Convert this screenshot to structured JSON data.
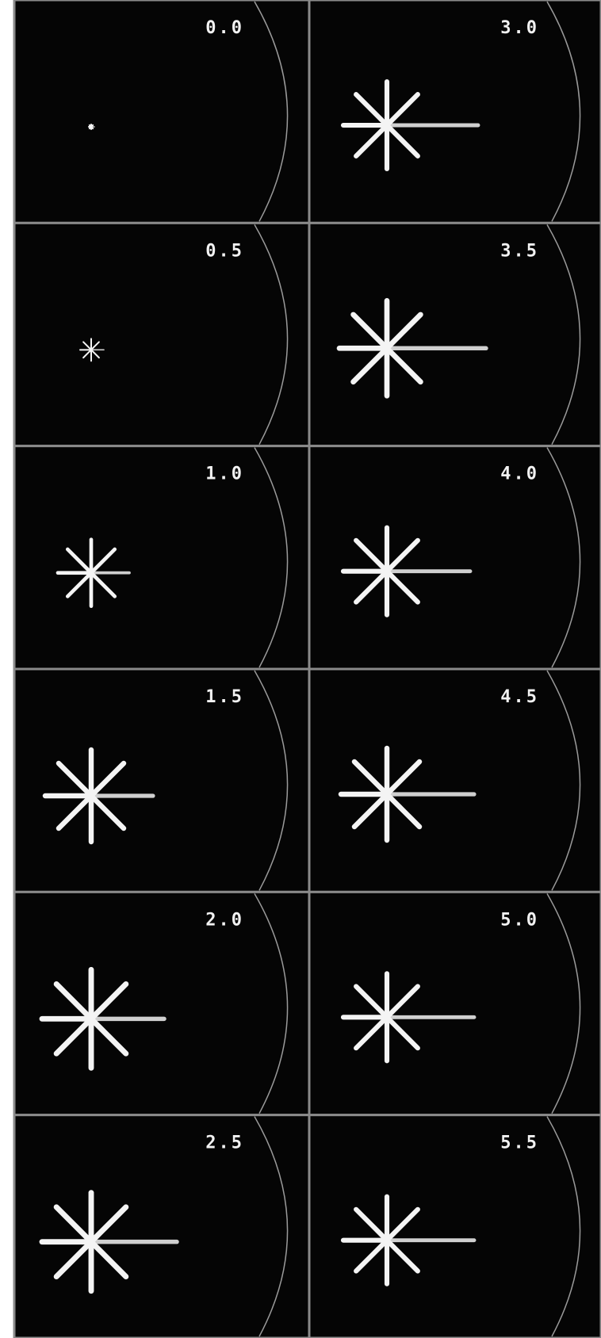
{
  "panels": [
    {
      "label": "0.0"
    },
    {
      "label": "3.0"
    },
    {
      "label": "0.5"
    },
    {
      "label": "3.5"
    },
    {
      "label": "1.0"
    },
    {
      "label": "4.0"
    },
    {
      "label": "1.5"
    },
    {
      "label": "4.5"
    },
    {
      "label": "2.0"
    },
    {
      "label": "5.0"
    },
    {
      "label": "2.5"
    },
    {
      "label": "5.5"
    }
  ]
}
